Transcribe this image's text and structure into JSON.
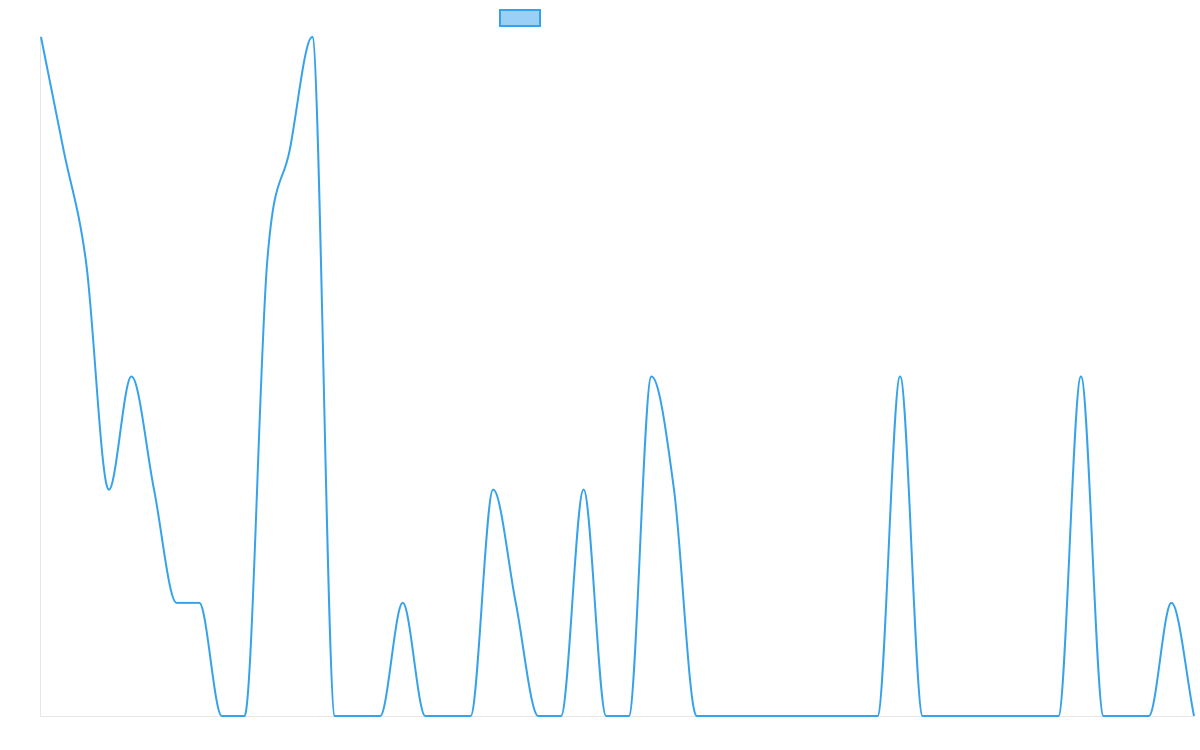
{
  "chart_data": {
    "type": "line",
    "title": "",
    "xlabel": "",
    "ylabel": "",
    "x": [
      0,
      1,
      2,
      3,
      4,
      5,
      6,
      7,
      8,
      9,
      10,
      11,
      12,
      13,
      14,
      15,
      16,
      17,
      18,
      19,
      20,
      21,
      22,
      23,
      24,
      25,
      26,
      27,
      28,
      29,
      30,
      31,
      32,
      33,
      34,
      35,
      36,
      37,
      38,
      39,
      40,
      41,
      42,
      43,
      44,
      45,
      46,
      47,
      48,
      49,
      50,
      51
    ],
    "ylim": [
      0,
      6
    ],
    "legend": {
      "position": "top-center",
      "entries": [
        ""
      ]
    },
    "series": [
      {
        "color": "#36a2eb",
        "fill": "#9ad0f5",
        "values": [
          6,
          5,
          4,
          2,
          3,
          2,
          1,
          1,
          0,
          0,
          4,
          5,
          6,
          0,
          0,
          0,
          1,
          0,
          0,
          0,
          2,
          1,
          0,
          0,
          2,
          0,
          0,
          3,
          2,
          0,
          0,
          0,
          0,
          0,
          0,
          0,
          0,
          0,
          3,
          0,
          0,
          0,
          0,
          0,
          0,
          0,
          3,
          0,
          0,
          0,
          1,
          0
        ]
      }
    ]
  }
}
